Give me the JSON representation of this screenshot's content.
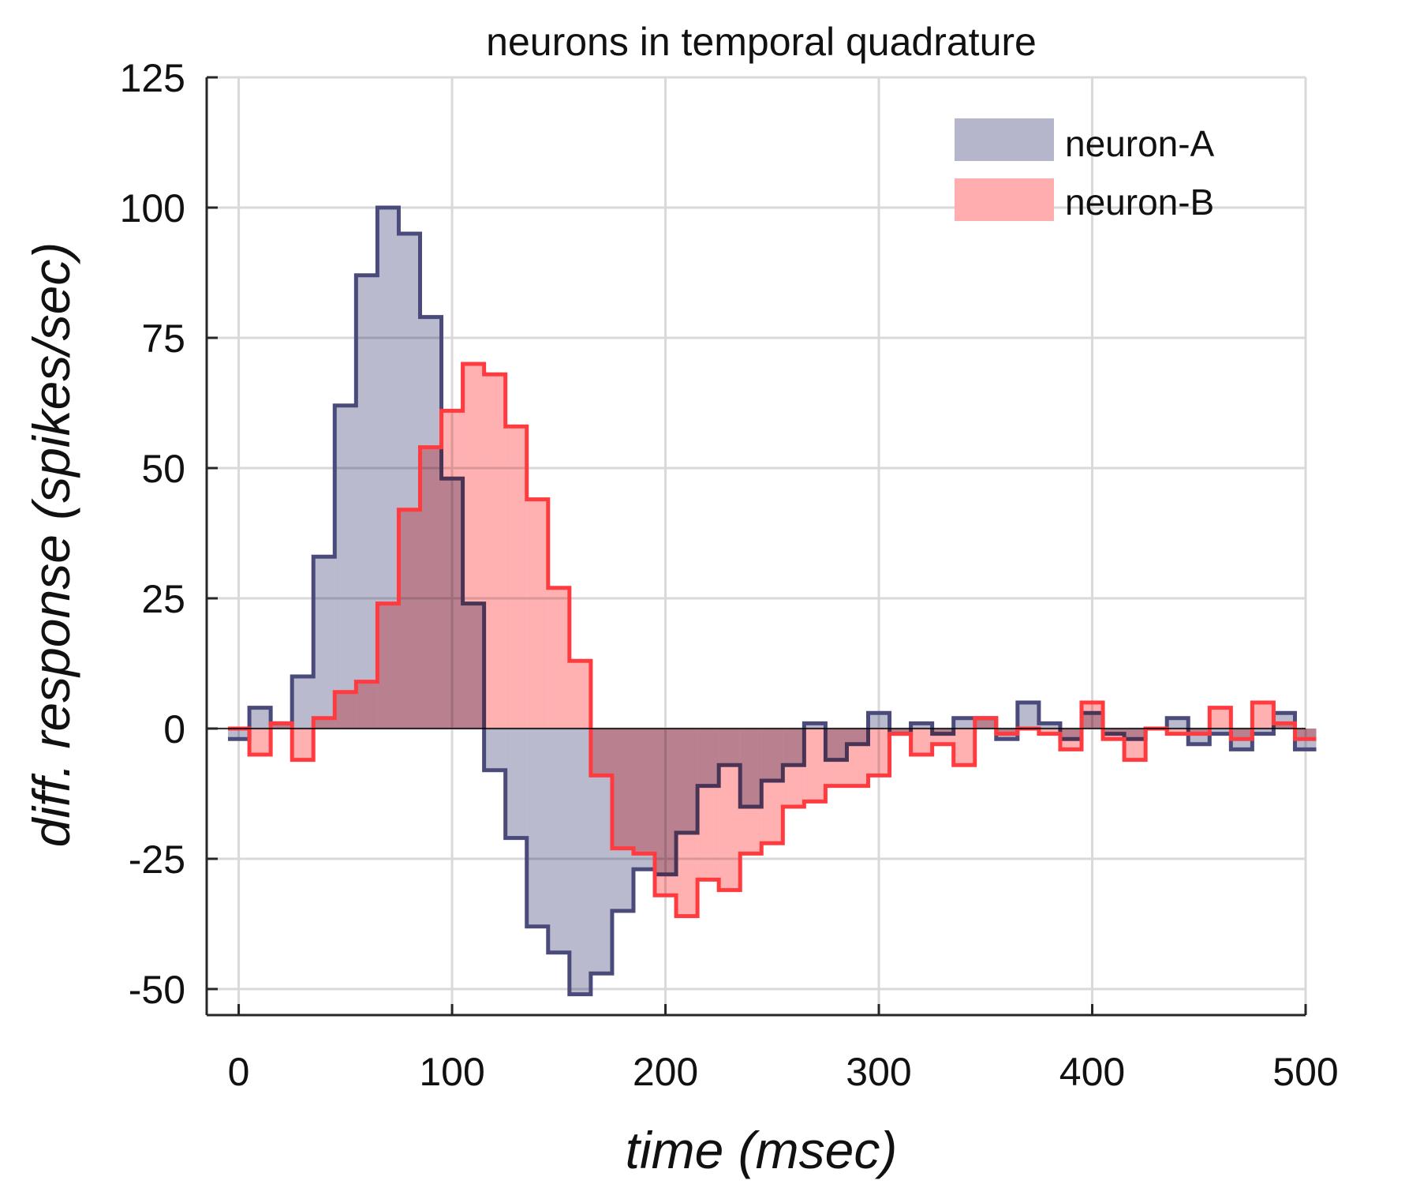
{
  "chart_data": {
    "type": "step-area",
    "title": "neurons in temporal quadrature",
    "xlabel": "time (msec)",
    "ylabel": "diff. response (spikes/sec)",
    "xlim": [
      -15,
      500
    ],
    "ylim": [
      -55,
      125
    ],
    "x_ticks": [
      0,
      100,
      200,
      300,
      400,
      500
    ],
    "x_tick_labels": [
      "0",
      "100",
      "200",
      "300",
      "400",
      "500"
    ],
    "y_ticks": [
      -50,
      -25,
      0,
      25,
      50,
      75,
      100,
      125
    ],
    "y_tick_labels": [
      "-50",
      "-25",
      "0",
      "25",
      "50",
      "75",
      "100",
      "125"
    ],
    "grid": true,
    "legend_position": "top-right",
    "bin_width": 10,
    "bin_starts": [
      -5,
      5,
      15,
      25,
      35,
      45,
      55,
      65,
      75,
      85,
      95,
      105,
      115,
      125,
      135,
      145,
      155,
      165,
      175,
      185,
      195,
      205,
      215,
      225,
      235,
      245,
      255,
      265,
      275,
      285,
      295,
      305,
      315,
      325,
      335,
      345,
      355,
      365,
      375,
      385,
      395,
      405,
      415,
      425,
      435,
      445,
      455,
      465,
      475,
      485,
      495
    ],
    "series": [
      {
        "name": "neuron-A",
        "fill": "#b5b6cb",
        "line": "#4a4b7a",
        "values": [
          -2,
          4,
          1,
          10,
          33,
          62,
          87,
          100,
          95,
          79,
          48,
          24,
          -8,
          -21,
          -38,
          -43,
          -51,
          -47,
          -35,
          -27,
          -28,
          -20,
          -11,
          -7,
          -15,
          -10,
          -7,
          1,
          -6,
          -3,
          3,
          -1,
          1,
          -1,
          2,
          2,
          -2,
          5,
          1,
          -2,
          3,
          -1,
          -2,
          0,
          2,
          -3,
          -1,
          -4,
          -1,
          3,
          -4
        ]
      },
      {
        "name": "neuron-B",
        "fill": "#ffadae",
        "line": "#ff3b3f",
        "values": [
          0,
          -5,
          1,
          -6,
          2,
          7,
          9,
          24,
          42,
          54,
          61,
          70,
          68,
          58,
          44,
          27,
          13,
          -9,
          -23,
          -24,
          -32,
          -36,
          -29,
          -31,
          -24,
          -22,
          -15,
          -14,
          -11,
          -11,
          -9,
          -1,
          -5,
          -3,
          -7,
          2,
          -1,
          0,
          -1,
          -4,
          5,
          -2,
          -6,
          0,
          -1,
          -1,
          4,
          -2,
          5,
          1,
          -2
        ]
      }
    ]
  }
}
